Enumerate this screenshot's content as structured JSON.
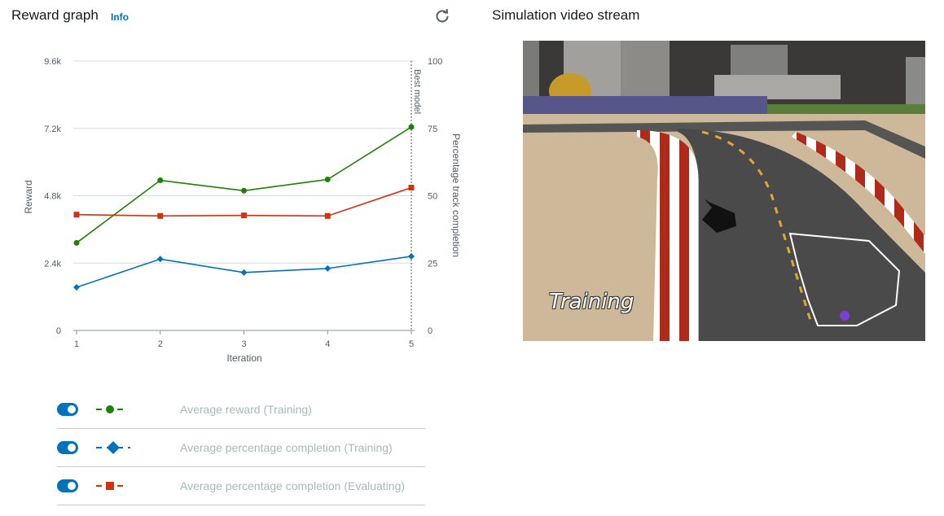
{
  "left_panel": {
    "title": "Reward graph",
    "info_label": "Info",
    "refresh_icon": "refresh-icon"
  },
  "right_panel": {
    "title": "Simulation video stream",
    "overlay_text": "Training"
  },
  "chart_data": {
    "type": "line",
    "x": [
      1,
      2,
      3,
      4,
      5
    ],
    "xlabel": "Iteration",
    "ylabel": "Reward",
    "y2label": "Percentage track completion",
    "ylim": [
      0,
      9600
    ],
    "y_ticks": [
      "0",
      "2.4k",
      "4.8k",
      "7.2k",
      "9.6k"
    ],
    "y2lim": [
      0,
      100
    ],
    "y2_ticks": [
      "0",
      "25",
      "50",
      "75",
      "100"
    ],
    "annotation": "Best model",
    "annotation_x": 5,
    "grid": true,
    "series": [
      {
        "name": "Average reward (Training)",
        "axis": "left",
        "color": "#1d8102",
        "marker": "circle",
        "values": [
          3120,
          5350,
          4980,
          5380,
          7250
        ]
      },
      {
        "name": "Average percentage completion (Training)",
        "axis": "right",
        "color": "#0073bb",
        "marker": "diamond",
        "values": [
          16,
          26.5,
          21.5,
          23,
          27.5
        ]
      },
      {
        "name": "Average percentage completion (Evaluating)",
        "axis": "right",
        "color": "#d13212",
        "marker": "square",
        "values": [
          43,
          42.5,
          42.7,
          42.5,
          53
        ]
      }
    ]
  },
  "legend": {
    "items": [
      {
        "label": "Average reward (Training)",
        "color": "#1d8102",
        "marker": "circle",
        "enabled": true
      },
      {
        "label": "Average percentage completion (Training)",
        "color": "#0073bb",
        "marker": "diamond",
        "enabled": true
      },
      {
        "label": "Average percentage completion (Evaluating)",
        "color": "#d13212",
        "marker": "square",
        "enabled": true
      }
    ]
  }
}
